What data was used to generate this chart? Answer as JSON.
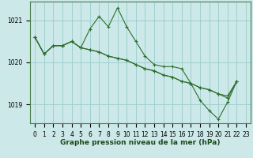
{
  "xlabel": "Graphe pression niveau de la mer (hPa)",
  "hours": [
    0,
    1,
    2,
    3,
    4,
    5,
    6,
    7,
    8,
    9,
    10,
    11,
    12,
    13,
    14,
    15,
    16,
    17,
    18,
    19,
    20,
    21,
    22,
    23
  ],
  "s1": [
    1020.6,
    1020.2,
    1020.4,
    1020.4,
    1020.5,
    1020.35,
    1020.8,
    1021.1,
    1020.85,
    1021.3,
    1020.85,
    1020.5,
    1020.15,
    1019.95,
    1019.9,
    1019.9,
    1019.85,
    1019.5,
    1019.1,
    1018.85,
    1018.65,
    1019.05,
    1019.55,
    null
  ],
  "s2": [
    1020.6,
    1020.2,
    1020.4,
    1020.4,
    1020.5,
    1020.35,
    1020.3,
    1020.25,
    1020.15,
    1020.1,
    1020.05,
    1019.95,
    1019.85,
    1019.8,
    1019.7,
    1019.65,
    1019.55,
    1019.5,
    1019.4,
    1019.35,
    1019.25,
    1019.2,
    1019.55,
    null
  ],
  "s3": [
    1020.6,
    1020.2,
    1020.4,
    1020.4,
    1020.5,
    1020.35,
    1020.3,
    1020.25,
    1020.15,
    1020.1,
    1020.05,
    1019.95,
    1019.85,
    1019.8,
    1019.7,
    1019.65,
    1019.55,
    1019.5,
    1019.4,
    1019.35,
    1019.25,
    1019.15,
    1019.55,
    null
  ],
  "ylim": [
    1018.55,
    1021.45
  ],
  "yticks": [
    1019,
    1020,
    1021
  ],
  "xticks": [
    0,
    1,
    2,
    3,
    4,
    5,
    6,
    7,
    8,
    9,
    10,
    11,
    12,
    13,
    14,
    15,
    16,
    17,
    18,
    19,
    20,
    21,
    22,
    23
  ],
  "bg_color": "#cce8e8",
  "grid_color": "#99cccc",
  "line_color": "#2d6e2d",
  "line_width": 0.8,
  "marker_size": 3.5,
  "tick_fontsize": 5.5,
  "label_fontsize": 6.5
}
